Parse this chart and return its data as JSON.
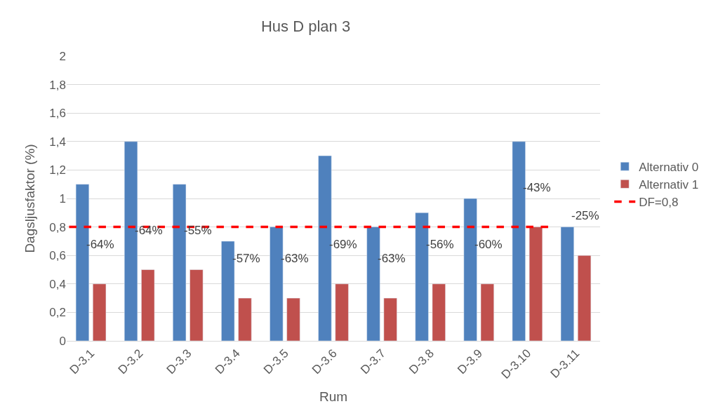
{
  "chart_data": {
    "type": "bar",
    "title": "Hus D plan 3",
    "xlabel": "Rum",
    "ylabel": "Dagsljusfaktor (%)",
    "categories": [
      "D-3.1",
      "D-3.2",
      "D-3.3",
      "D-3.4",
      "D-3.5",
      "D-3.6",
      "D-3.7",
      "D-3.8",
      "D-3.9",
      "D-3.10",
      "D-3.11"
    ],
    "series": [
      {
        "name": "Alternativ 0",
        "color": "#4f81bd",
        "values": [
          1.1,
          1.4,
          1.1,
          0.7,
          0.8,
          1.3,
          0.8,
          0.9,
          1.0,
          1.4,
          0.8
        ]
      },
      {
        "name": "Alternativ 1",
        "color": "#c0504d",
        "values": [
          0.4,
          0.5,
          0.5,
          0.3,
          0.3,
          0.4,
          0.3,
          0.4,
          0.4,
          0.8,
          0.6
        ]
      }
    ],
    "annotations": [
      {
        "text": "-64%",
        "y": 0.4
      },
      {
        "text": "-64%",
        "y": 0.5
      },
      {
        "text": "-55%",
        "y": 0.5
      },
      {
        "text": "-57%",
        "y": 0.3
      },
      {
        "text": "-63%",
        "y": 0.3
      },
      {
        "text": "-69%",
        "y": 0.4
      },
      {
        "text": "-63%",
        "y": 0.3
      },
      {
        "text": "-56%",
        "y": 0.4
      },
      {
        "text": "-60%",
        "y": 0.4
      },
      {
        "text": "-43%",
        "y": 0.8
      },
      {
        "text": "-25%",
        "y": 0.6
      }
    ],
    "ref_lines": [
      {
        "axis": "y",
        "value": 0.8,
        "label": "DF=0,8",
        "color": "#ff0000",
        "line_style": "dashed"
      }
    ],
    "ylim": [
      0,
      2
    ],
    "yticks": [
      0,
      {
        "value": 0.2,
        "label": "0,2"
      },
      {
        "value": 0.4,
        "label": "0,4"
      },
      {
        "value": 0.6,
        "label": "0,6"
      },
      {
        "value": 0.8,
        "label": "0,8"
      },
      1,
      {
        "value": 1.2,
        "label": "1,2"
      },
      {
        "value": 1.4,
        "label": "1,4"
      },
      {
        "value": 1.6,
        "label": "1,6"
      },
      {
        "value": 1.8,
        "label": "1,8"
      },
      2
    ],
    "grid": "y",
    "legend": "right"
  }
}
